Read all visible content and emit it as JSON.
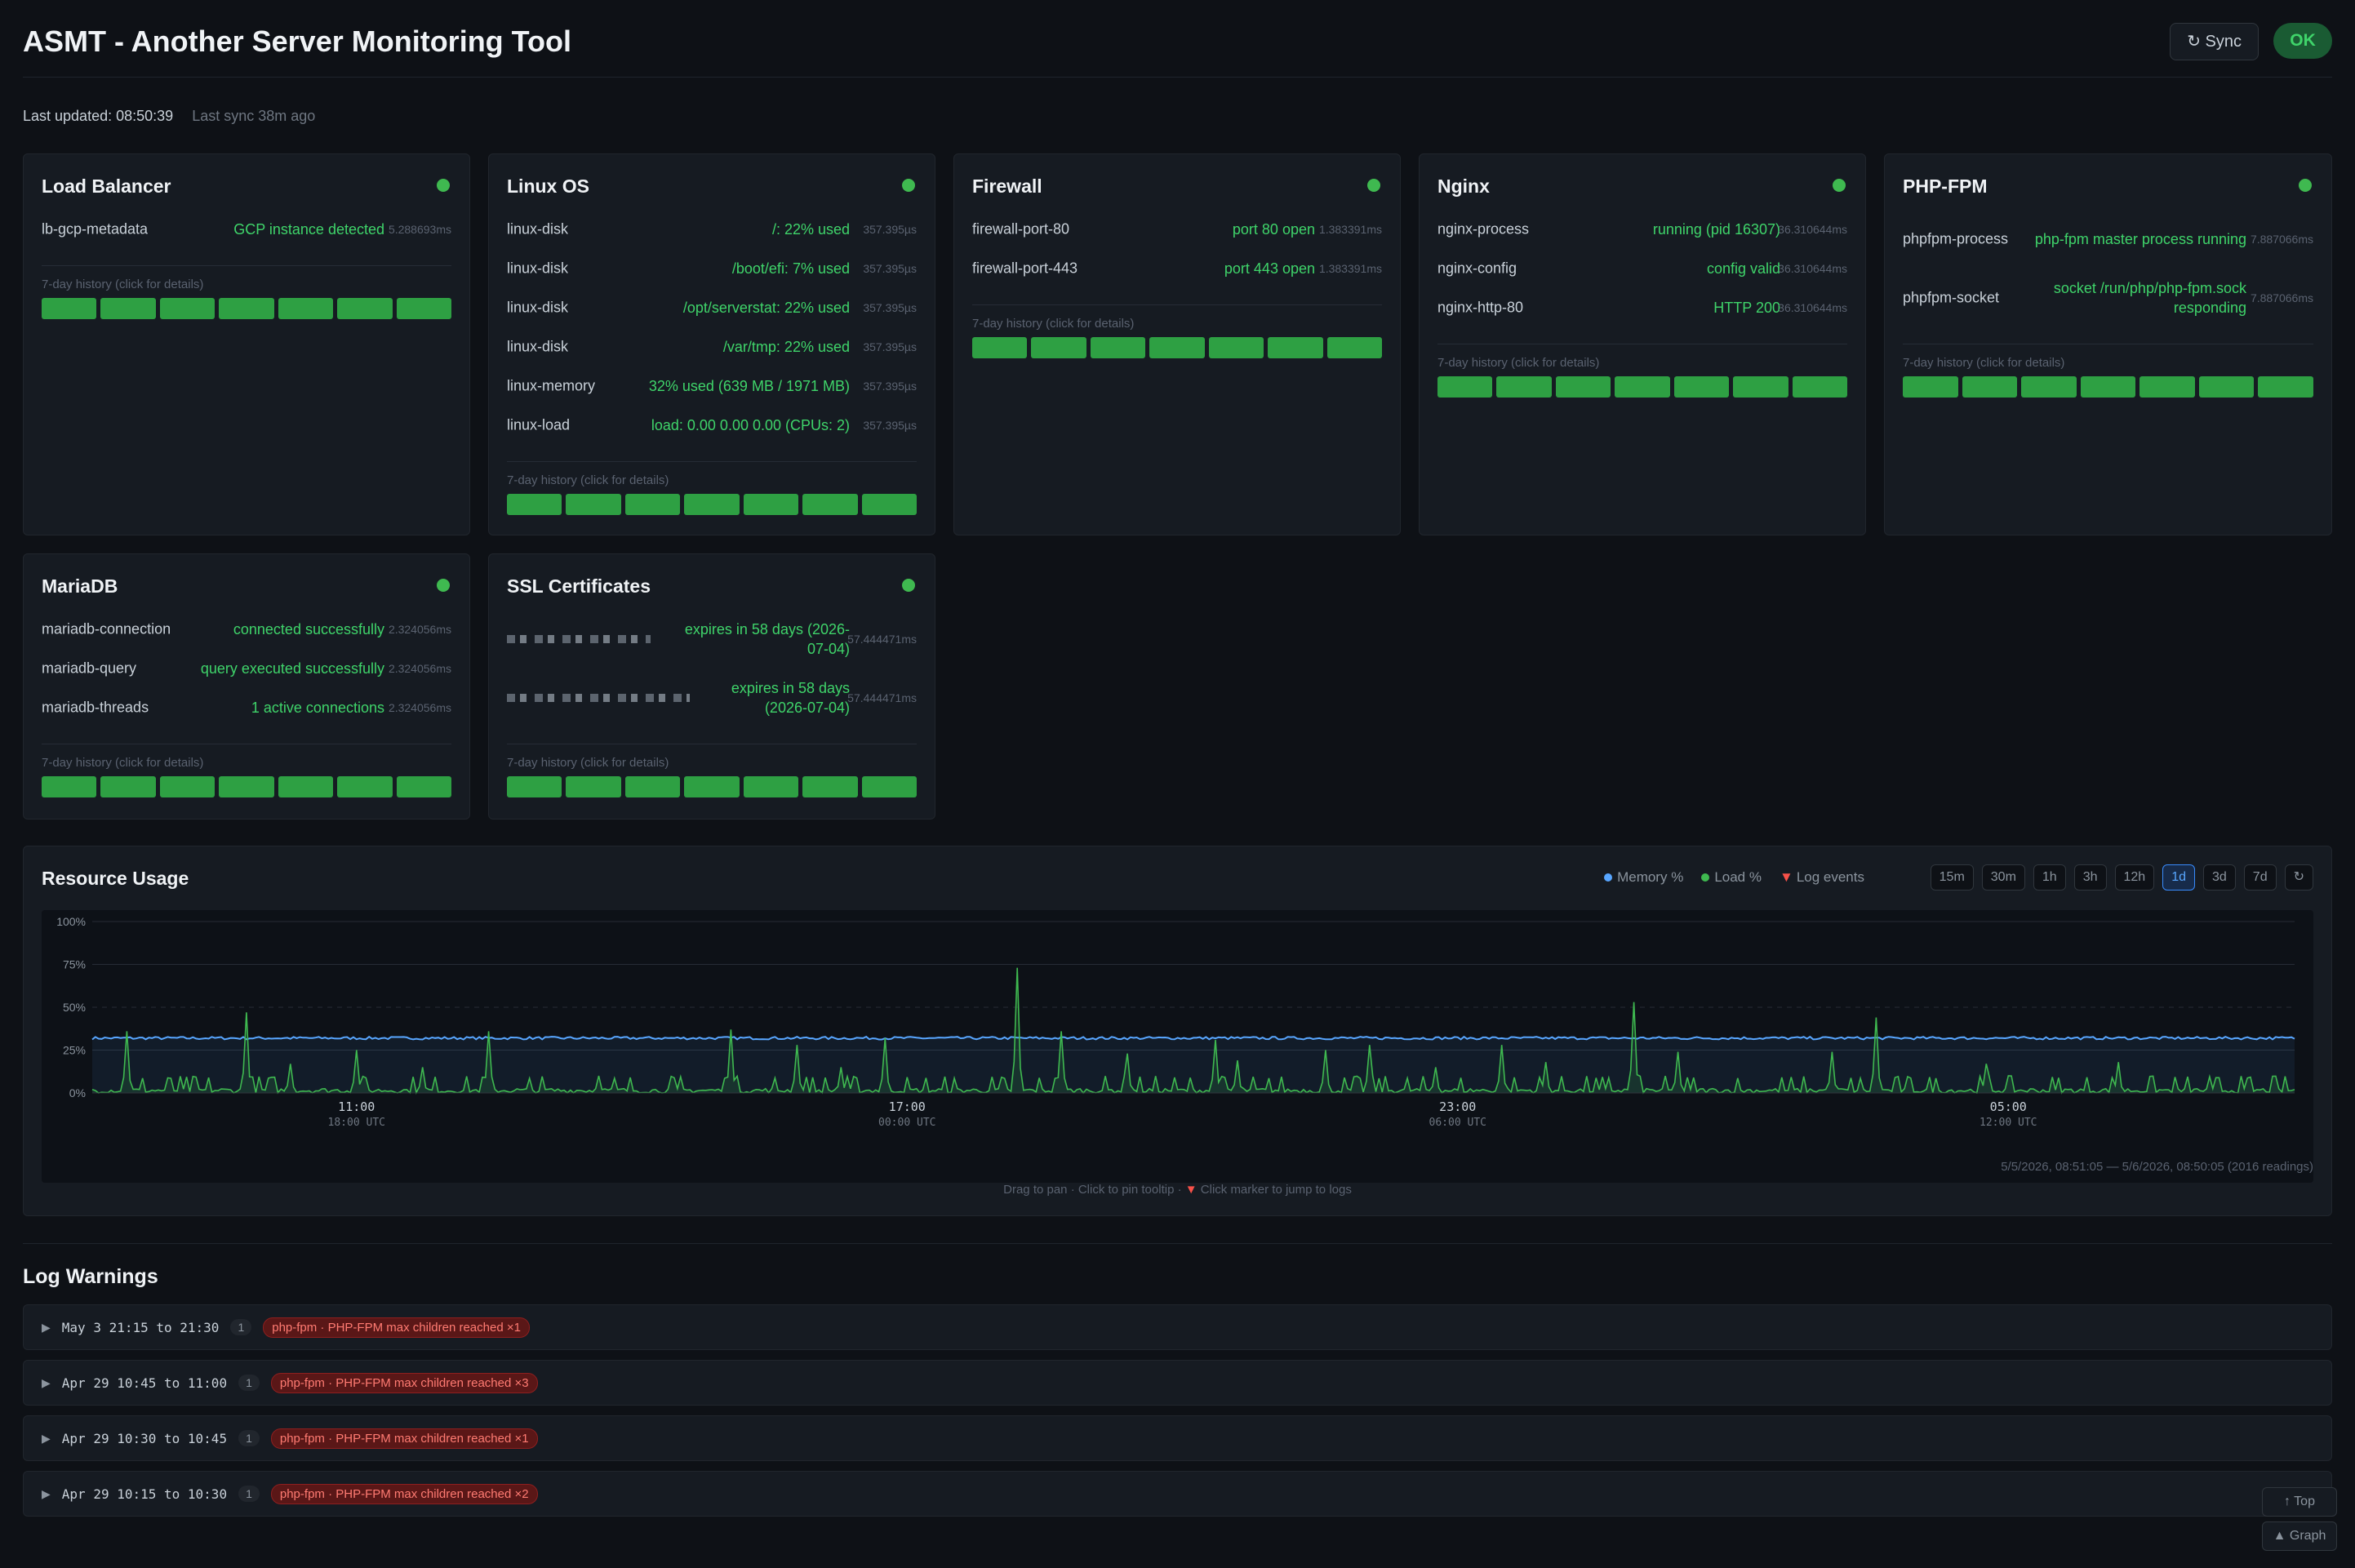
{
  "header": {
    "title": "ASMT - Another Server Monitoring Tool",
    "sync_label": "↻ Sync",
    "status_label": "OK"
  },
  "meta": {
    "last_updated": "Last updated: 08:50:39",
    "last_sync": "Last sync 38m ago"
  },
  "history_label": "7-day history (click for details)",
  "cards": {
    "lb": {
      "title": "Load Balancer",
      "rows": [
        {
          "name": "lb-gcp-metadata",
          "value": "GCP instance detected",
          "time": "5.288693ms"
        }
      ]
    },
    "linux": {
      "title": "Linux OS",
      "rows": [
        {
          "name": "linux-disk",
          "value": "/: 22% used",
          "time": "357.395µs"
        },
        {
          "name": "linux-disk",
          "value": "/boot/efi: 7% used",
          "time": "357.395µs"
        },
        {
          "name": "linux-disk",
          "value": "/opt/serverstat: 22% used",
          "time": "357.395µs"
        },
        {
          "name": "linux-disk",
          "value": "/var/tmp: 22% used",
          "time": "357.395µs"
        },
        {
          "name": "linux-memory",
          "value": "32% used (639 MB / 1971 MB)",
          "time": "357.395µs"
        },
        {
          "name": "linux-load",
          "value": "load: 0.00 0.00 0.00 (CPUs: 2)",
          "time": "357.395µs"
        }
      ]
    },
    "fw": {
      "title": "Firewall",
      "rows": [
        {
          "name": "firewall-port-80",
          "value": "port 80 open",
          "time": "1.383391ms"
        },
        {
          "name": "firewall-port-443",
          "value": "port 443 open",
          "time": "1.383391ms"
        }
      ]
    },
    "nginx": {
      "title": "Nginx",
      "rows": [
        {
          "name": "nginx-process",
          "value": "running (pid 16307)",
          "time": "36.310644ms"
        },
        {
          "name": "nginx-config",
          "value": "config valid",
          "time": "36.310644ms"
        },
        {
          "name": "nginx-http-80",
          "value": "HTTP 200",
          "time": "36.310644ms"
        }
      ]
    },
    "php": {
      "title": "PHP-FPM",
      "rows": [
        {
          "name": "phpfpm-process",
          "value": "php-fpm master process running",
          "time": "7.887066ms"
        },
        {
          "name": "phpfpm-socket",
          "value": "socket /run/php/php-fpm.sock responding",
          "time": "7.887066ms"
        }
      ]
    },
    "maria": {
      "title": "MariaDB",
      "rows": [
        {
          "name": "mariadb-connection",
          "value": "connected successfully",
          "time": "2.324056ms"
        },
        {
          "name": "mariadb-query",
          "value": "query executed successfully",
          "time": "2.324056ms"
        },
        {
          "name": "mariadb-threads",
          "value": "1 active connections",
          "time": "2.324056ms"
        }
      ]
    },
    "ssl": {
      "title": "SSL Certificates",
      "rows": [
        {
          "value": "expires in 58 days (2026-07-04)",
          "time": "57.444471ms"
        },
        {
          "value": "expires in 58 days (2026-07-04)",
          "time": "57.444471ms"
        }
      ]
    }
  },
  "resource": {
    "title": "Resource Usage",
    "legend": {
      "memory": "Memory %",
      "load": "Load %",
      "logs": "Log events"
    },
    "ranges": [
      "15m",
      "30m",
      "1h",
      "3h",
      "12h",
      "1d",
      "3d",
      "7d",
      "↻"
    ],
    "active_range": "1d",
    "readings": "5/5/2026, 08:51:05 — 5/6/2026, 08:50:05 (2016 readings)",
    "hint_a": "Drag to pan · Click to pin tooltip · ",
    "hint_marker": "▼",
    "hint_b": " Click marker to jump to logs"
  },
  "chart_data": {
    "type": "line",
    "yticks": [
      "100%",
      "75%",
      "50%",
      "25%",
      "0%"
    ],
    "ylim": [
      0,
      100
    ],
    "xticks": [
      {
        "label": "11:00",
        "utc": "18:00 UTC"
      },
      {
        "label": "17:00",
        "utc": "00:00 UTC"
      },
      {
        "label": "23:00",
        "utc": "06:00 UTC"
      },
      {
        "label": "05:00",
        "utc": "12:00 UTC"
      }
    ],
    "series": [
      {
        "name": "Memory %",
        "color": "#58a6ff",
        "baseline": 32
      },
      {
        "name": "Load %",
        "color": "#3fb950",
        "spikes": [
          [
            0.015,
            36
          ],
          [
            0.07,
            47
          ],
          [
            0.09,
            17
          ],
          [
            0.12,
            25
          ],
          [
            0.15,
            15
          ],
          [
            0.18,
            36
          ],
          [
            0.23,
            10
          ],
          [
            0.29,
            37
          ],
          [
            0.32,
            28
          ],
          [
            0.34,
            15
          ],
          [
            0.36,
            32
          ],
          [
            0.42,
            73
          ],
          [
            0.44,
            36
          ],
          [
            0.47,
            23
          ],
          [
            0.51,
            31
          ],
          [
            0.52,
            19
          ],
          [
            0.56,
            25
          ],
          [
            0.58,
            28
          ],
          [
            0.61,
            15
          ],
          [
            0.64,
            28
          ],
          [
            0.66,
            18
          ],
          [
            0.7,
            53
          ],
          [
            0.72,
            24
          ],
          [
            0.79,
            24
          ],
          [
            0.81,
            44
          ],
          [
            0.86,
            17
          ],
          [
            0.92,
            18
          ]
        ]
      }
    ],
    "log_events_color": "#f85149"
  },
  "logs": {
    "title": "Log Warnings",
    "items": [
      {
        "range": "May 3 21:15 to 21:30",
        "count": "1",
        "tag": "php-fpm · PHP-FPM max children reached ×1"
      },
      {
        "range": "Apr 29 10:45 to 11:00",
        "count": "1",
        "tag": "php-fpm · PHP-FPM max children reached ×3"
      },
      {
        "range": "Apr 29 10:30 to 10:45",
        "count": "1",
        "tag": "php-fpm · PHP-FPM max children reached ×1"
      },
      {
        "range": "Apr 29 10:15 to 10:30",
        "count": "1",
        "tag": "php-fpm · PHP-FPM max children reached ×2"
      }
    ]
  },
  "fab": {
    "top": "↑ Top",
    "graph": "▲ Graph"
  }
}
